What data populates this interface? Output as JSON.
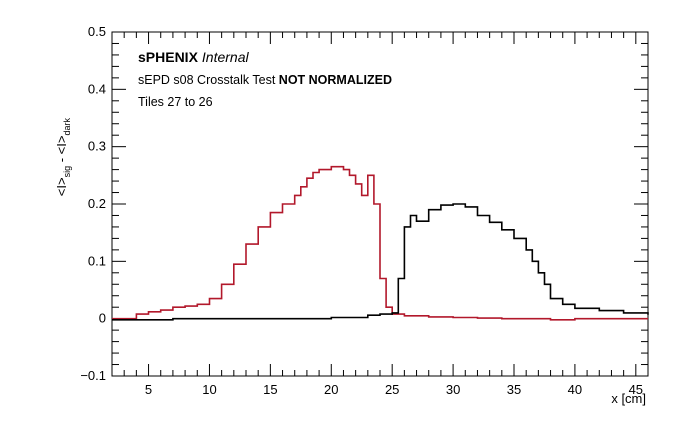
{
  "chart_data": {
    "type": "line",
    "title": "",
    "xlabel": "x [cm]",
    "ylabel": "<I>sig - <I>dark",
    "ylabel_parts": {
      "main1": "<I>",
      "sub1": "sig",
      "sep": " - ",
      "main2": "<I>",
      "sub2": "dark"
    },
    "xlim": [
      2,
      46
    ],
    "ylim": [
      -0.1,
      0.5
    ],
    "x_ticks": [
      5,
      10,
      15,
      20,
      25,
      30,
      35,
      40,
      45
    ],
    "x_tick_labels": [
      "5",
      "10",
      "15",
      "20",
      "25",
      "30",
      "35",
      "40",
      "45"
    ],
    "y_ticks": [
      -0.1,
      0,
      0.1,
      0.2,
      0.3,
      0.4,
      0.5
    ],
    "y_tick_labels": [
      "−0.1",
      "0",
      "0.1",
      "0.2",
      "0.3",
      "0.4",
      "0.5"
    ],
    "grid": false,
    "legend": "none",
    "annotations": {
      "experiment": "sPHENIX",
      "status": "Internal",
      "test_prefix": "sEPD s08 Crosstalk Test ",
      "test_bold": "NOT NORMALIZED",
      "tiles": "Tiles 27 to 26"
    },
    "series": [
      {
        "color": "#b2182b",
        "style": "step",
        "x": [
          2,
          3.5,
          4,
          5,
          6,
          7,
          8,
          9,
          10,
          11,
          12,
          13,
          14,
          15,
          16,
          17,
          17.5,
          18,
          18.5,
          19,
          20,
          21,
          21.5,
          22,
          22.5,
          23,
          23.5,
          24,
          24.5,
          25,
          26,
          28,
          30,
          32,
          34,
          36,
          38,
          40,
          42,
          44,
          46
        ],
        "y": [
          0.0,
          0.0,
          0.008,
          0.012,
          0.015,
          0.02,
          0.022,
          0.025,
          0.035,
          0.06,
          0.095,
          0.13,
          0.16,
          0.185,
          0.2,
          0.215,
          0.23,
          0.245,
          0.255,
          0.26,
          0.265,
          0.26,
          0.25,
          0.235,
          0.215,
          0.25,
          0.2,
          0.07,
          0.02,
          0.008,
          0.005,
          0.003,
          0.002,
          0.001,
          0.0,
          0.0,
          -0.002,
          0.0,
          0.0,
          0.0,
          0.0
        ]
      },
      {
        "color": "#000000",
        "style": "step",
        "x": [
          2,
          7,
          10,
          20,
          23,
          24,
          25,
          25.5,
          26,
          26.5,
          27,
          28,
          29,
          30,
          31,
          32,
          33,
          34,
          35,
          36,
          36.5,
          37,
          37.5,
          38,
          39,
          40,
          42,
          44,
          46
        ],
        "y": [
          -0.002,
          0.0,
          0.0,
          0.002,
          0.006,
          0.008,
          0.01,
          0.07,
          0.16,
          0.18,
          0.17,
          0.19,
          0.198,
          0.2,
          0.195,
          0.18,
          0.168,
          0.155,
          0.14,
          0.12,
          0.1,
          0.08,
          0.06,
          0.035,
          0.025,
          0.018,
          0.014,
          0.01,
          0.007
        ]
      }
    ]
  }
}
